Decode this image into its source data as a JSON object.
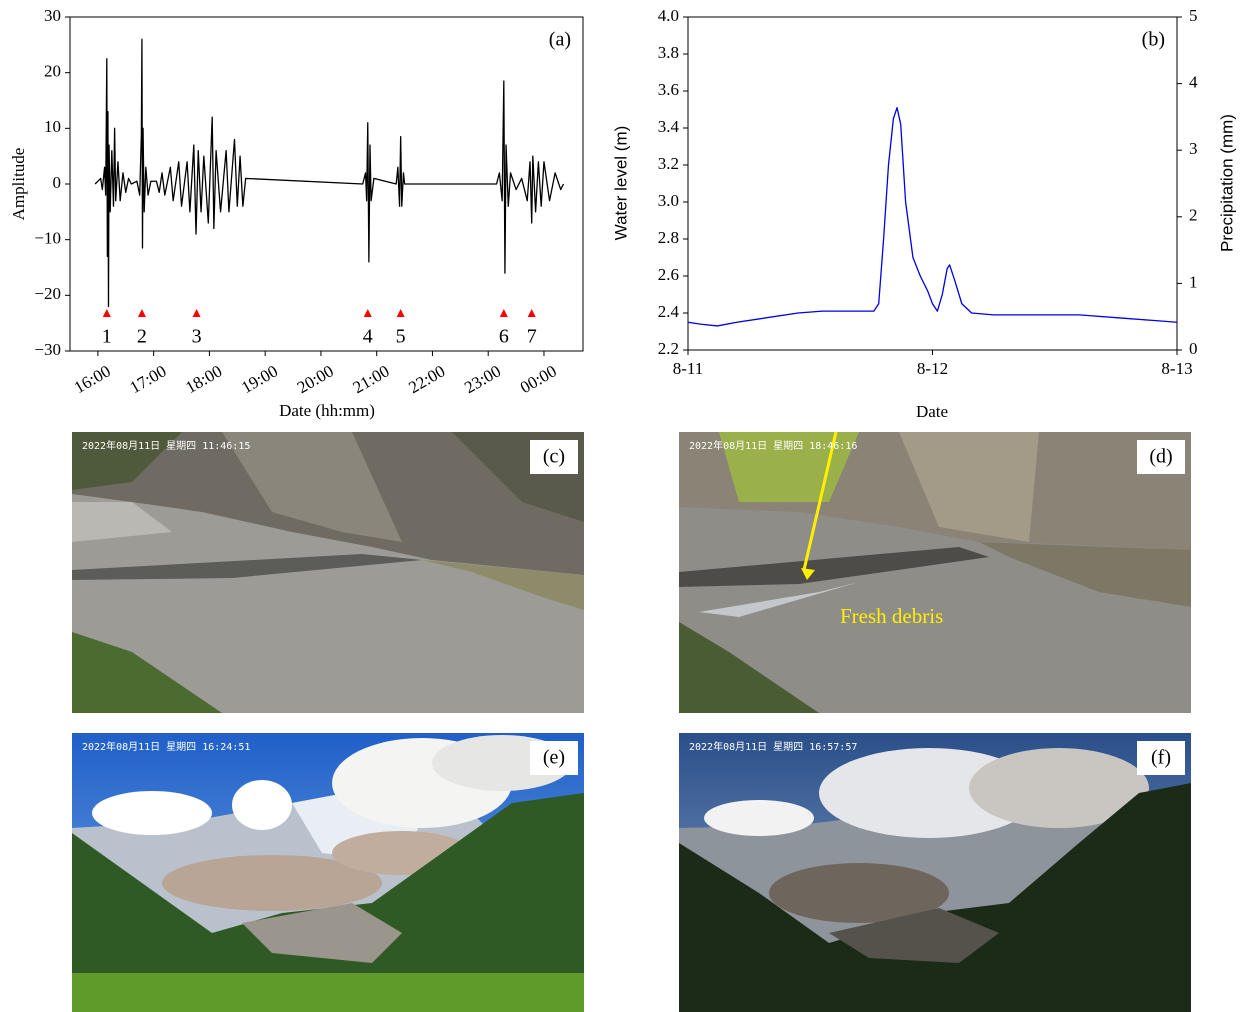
{
  "chart_data": [
    {
      "type": "line",
      "panel_label": "(a)",
      "xlabel": "Date (hh:mm)",
      "ylabel": "Amplitude",
      "color": "#000000",
      "xlim": [
        15.5,
        24.7
      ],
      "ylim": [
        -30,
        30
      ],
      "xticks": [
        {
          "value": 16,
          "label": "16:00"
        },
        {
          "value": 17,
          "label": "17:00"
        },
        {
          "value": 18,
          "label": "18:00"
        },
        {
          "value": 19,
          "label": "19:00"
        },
        {
          "value": 20,
          "label": "20:00"
        },
        {
          "value": 21,
          "label": "21:00"
        },
        {
          "value": 22,
          "label": "22:00"
        },
        {
          "value": 23,
          "label": "23:00"
        },
        {
          "value": 24,
          "label": "00:00"
        }
      ],
      "yticks": [
        {
          "value": -30,
          "label": "−30"
        },
        {
          "value": -20,
          "label": "−20"
        },
        {
          "value": -10,
          "label": "−10"
        },
        0,
        10,
        20,
        30
      ],
      "x": [
        15.95,
        16.05,
        16.08,
        16.12,
        16.14,
        16.16,
        16.17,
        16.18,
        16.19,
        16.2,
        16.22,
        16.25,
        16.28,
        16.3,
        16.32,
        16.36,
        16.4,
        16.45,
        16.5,
        16.55,
        16.6,
        16.7,
        16.75,
        16.78,
        16.79,
        16.8,
        16.81,
        16.83,
        16.86,
        16.9,
        16.95,
        17.05,
        17.1,
        17.15,
        17.2,
        17.3,
        17.35,
        17.45,
        17.5,
        17.6,
        17.65,
        17.72,
        17.76,
        17.8,
        17.85,
        17.9,
        17.98,
        18.05,
        18.08,
        18.12,
        18.2,
        18.3,
        18.35,
        18.45,
        18.5,
        18.55,
        18.6,
        18.65,
        20.75,
        20.8,
        20.82,
        20.84,
        20.86,
        20.88,
        20.9,
        20.95,
        21.35,
        21.38,
        21.41,
        21.43,
        21.45,
        21.48,
        21.5,
        23.15,
        23.2,
        23.25,
        23.28,
        23.3,
        23.32,
        23.36,
        23.4,
        23.5,
        23.6,
        23.7,
        23.75,
        23.78,
        23.8,
        23.85,
        23.9,
        23.95,
        24.0,
        24.1,
        24.2,
        24.3,
        24.35
      ],
      "values": [
        0,
        1,
        -1,
        3,
        -2,
        22.5,
        -13,
        13,
        -22,
        7,
        -5,
        6,
        -4,
        10,
        -3,
        4,
        -3,
        2,
        -1.5,
        1,
        0,
        0.5,
        -2,
        9,
        26,
        -11.5,
        10,
        -5,
        3,
        -2,
        0.5,
        0.5,
        -1.5,
        2,
        -2,
        3,
        -3,
        4,
        -4,
        4,
        -5,
        7,
        -9,
        6,
        -5,
        5,
        -7,
        12,
        -8,
        6,
        -5,
        6,
        -5,
        8,
        -4,
        5,
        -4,
        1,
        0,
        2,
        -3,
        11,
        -14,
        7,
        -3,
        1,
        0,
        3,
        -4,
        8.5,
        -4,
        2,
        0,
        0,
        2,
        -3,
        18.5,
        -16,
        7,
        -4,
        2,
        -1,
        1,
        -3,
        4,
        -7,
        5,
        -5,
        4,
        -4,
        4,
        -3,
        2,
        -1,
        0
      ],
      "events": [
        {
          "x": 16.16,
          "label": "1"
        },
        {
          "x": 16.79,
          "label": "2"
        },
        {
          "x": 17.77,
          "label": "3"
        },
        {
          "x": 20.84,
          "label": "4"
        },
        {
          "x": 21.43,
          "label": "5"
        },
        {
          "x": 23.28,
          "label": "6"
        },
        {
          "x": 23.78,
          "label": "7"
        }
      ],
      "event_color": "#ff0000"
    },
    {
      "type": "line",
      "panel_label": "(b)",
      "xlabel": "Date",
      "ylabel": "Water level (m)",
      "y2label": "Precipitation (mm)",
      "color": "#0000e0",
      "xlim": [
        0,
        2
      ],
      "ylim": [
        2.2,
        4.0
      ],
      "y2lim": [
        0,
        5
      ],
      "xticks": [
        {
          "value": 0,
          "label": "8-11"
        },
        {
          "value": 1,
          "label": "8-12"
        },
        {
          "value": 2,
          "label": "8-13"
        }
      ],
      "yticks": [
        2.2,
        2.4,
        2.6,
        2.8,
        {
          "value": 3,
          "label": "3.0"
        },
        3.2,
        3.4,
        3.6,
        3.8,
        {
          "value": 4,
          "label": "4.0"
        }
      ],
      "y2ticks": [
        0,
        1,
        2,
        3,
        4,
        5
      ],
      "x": [
        0,
        0.05,
        0.12,
        0.2,
        0.3,
        0.45,
        0.55,
        0.7,
        0.76,
        0.78,
        0.8,
        0.82,
        0.84,
        0.855,
        0.87,
        0.89,
        0.92,
        0.95,
        0.98,
        1.0,
        1.02,
        1.04,
        1.06,
        1.07,
        1.09,
        1.12,
        1.16,
        1.25,
        1.4,
        1.6,
        1.8,
        1.9,
        2.0
      ],
      "values": [
        2.35,
        2.34,
        2.33,
        2.35,
        2.37,
        2.4,
        2.41,
        2.41,
        2.41,
        2.45,
        2.8,
        3.2,
        3.45,
        3.51,
        3.42,
        3.0,
        2.7,
        2.6,
        2.52,
        2.45,
        2.41,
        2.5,
        2.64,
        2.66,
        2.58,
        2.45,
        2.4,
        2.39,
        2.39,
        2.39,
        2.37,
        2.36,
        2.35
      ]
    }
  ],
  "photos": [
    {
      "label": "(c)",
      "timestamp": "2022年08月11日 星期四 11:46:15"
    },
    {
      "label": "(d)",
      "timestamp": "2022年08月11日 星期四 18:46:16",
      "annotation": "Fresh debris"
    },
    {
      "label": "(e)",
      "timestamp": "2022年08月11日 星期四 16:24:51"
    },
    {
      "label": "(f)",
      "timestamp": "2022年08月11日 星期四 16:57:57"
    }
  ]
}
